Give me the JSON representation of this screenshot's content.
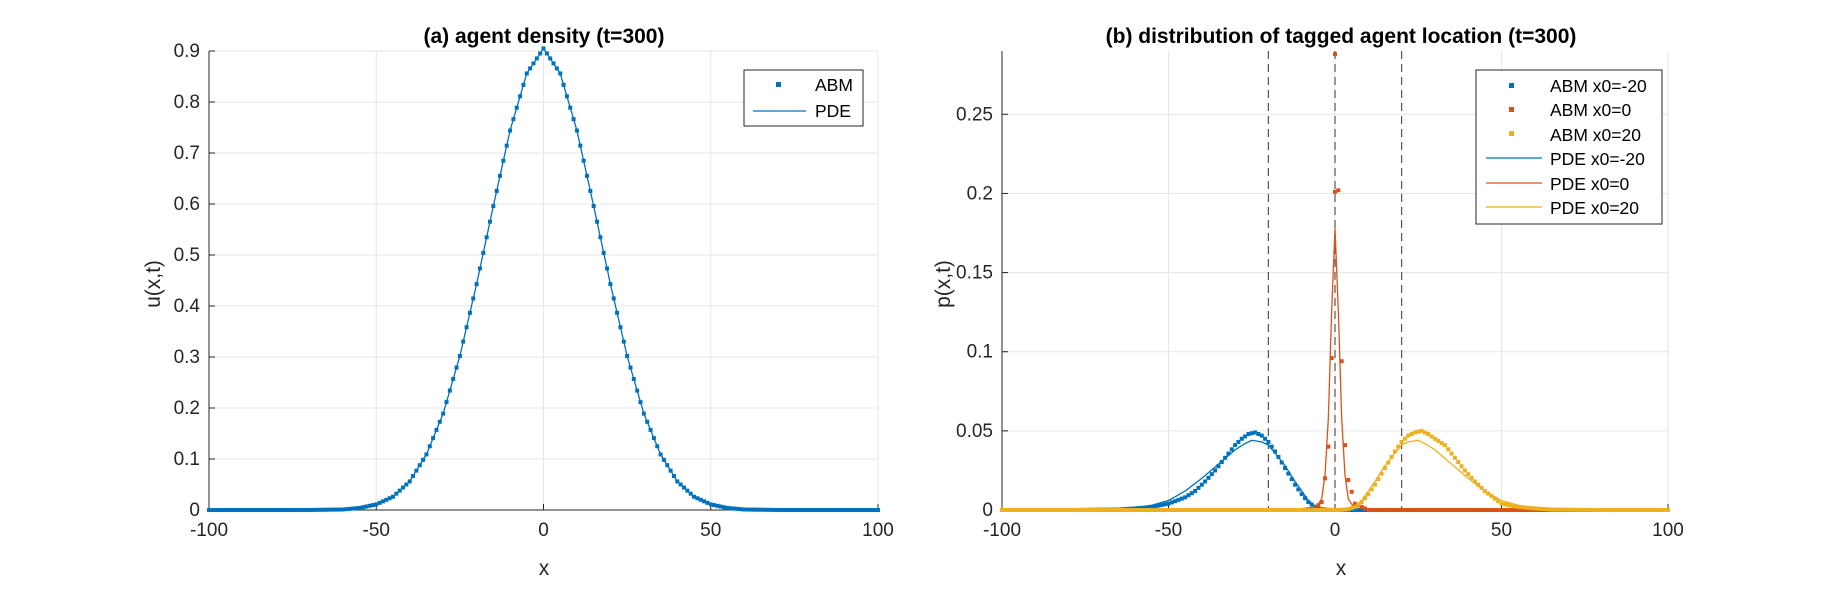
{
  "chart_data": [
    {
      "type": "line",
      "title": "(a) agent density (t=300)",
      "xlabel": "x",
      "ylabel": "u(x,t)",
      "xlim": [
        -100,
        100
      ],
      "ylim": [
        0,
        0.9
      ],
      "xticks": [
        -100,
        -50,
        0,
        50,
        100
      ],
      "yticks": [
        0,
        0.1,
        0.2,
        0.3,
        0.4,
        0.5,
        0.6,
        0.7,
        0.8,
        0.9
      ],
      "xtick_labels": [
        "-100",
        "-50",
        "0",
        "50",
        "100"
      ],
      "ytick_labels": [
        "0",
        "0.1",
        "0.2",
        "0.3",
        "0.4",
        "0.5",
        "0.6",
        "0.7",
        "0.8",
        "0.9"
      ],
      "grid": true,
      "legend": "top-right",
      "series": [
        {
          "name": "ABM",
          "style": "markers",
          "color": "#0072BD",
          "x": [
            -100,
            -90,
            -80,
            -70,
            -60,
            -55,
            -50,
            -45,
            -40,
            -35,
            -30,
            -25,
            -20,
            -15,
            -10,
            -5,
            0,
            5,
            10,
            15,
            20,
            25,
            30,
            35,
            40,
            45,
            50,
            55,
            60,
            70,
            80,
            90,
            100
          ],
          "y": [
            0,
            0,
            0,
            0.0001,
            0.001,
            0.004,
            0.011,
            0.026,
            0.056,
            0.109,
            0.189,
            0.302,
            0.443,
            0.596,
            0.744,
            0.856,
            0.905,
            0.856,
            0.744,
            0.596,
            0.443,
            0.302,
            0.189,
            0.109,
            0.056,
            0.026,
            0.011,
            0.004,
            0.001,
            0.0001,
            0,
            0,
            0
          ]
        },
        {
          "name": "PDE",
          "style": "line",
          "color": "#0072BD",
          "x": [
            -100,
            -90,
            -80,
            -70,
            -60,
            -55,
            -50,
            -45,
            -40,
            -35,
            -30,
            -25,
            -20,
            -15,
            -10,
            -5,
            0,
            5,
            10,
            15,
            20,
            25,
            30,
            35,
            40,
            45,
            50,
            55,
            60,
            70,
            80,
            90,
            100
          ],
          "y": [
            0,
            0,
            0,
            0.0001,
            0.001,
            0.004,
            0.011,
            0.026,
            0.056,
            0.109,
            0.189,
            0.302,
            0.443,
            0.596,
            0.744,
            0.856,
            0.905,
            0.856,
            0.744,
            0.596,
            0.443,
            0.302,
            0.189,
            0.109,
            0.056,
            0.026,
            0.011,
            0.004,
            0.001,
            0.0001,
            0,
            0,
            0
          ]
        }
      ]
    },
    {
      "type": "line",
      "title": "(b) distribution of tagged agent location (t=300)",
      "xlabel": "x",
      "ylabel": "p(x,t)",
      "xlim": [
        -100,
        100
      ],
      "ylim": [
        0,
        0.29
      ],
      "xticks": [
        -100,
        -50,
        0,
        50,
        100
      ],
      "yticks": [
        0,
        0.05,
        0.1,
        0.15,
        0.2,
        0.25
      ],
      "xtick_labels": [
        "-100",
        "-50",
        "0",
        "50",
        "100"
      ],
      "ytick_labels": [
        "0",
        "0.05",
        "0.1",
        "0.15",
        "0.2",
        "0.25"
      ],
      "grid": true,
      "legend": "top-right",
      "reference_lines_x": [
        -20,
        0,
        20
      ],
      "series": [
        {
          "name": "ABM x0=-20",
          "style": "markers",
          "color": "#0072BD",
          "x": [
            -100,
            -80,
            -65,
            -60,
            -55,
            -50,
            -45,
            -42,
            -39,
            -36,
            -33,
            -30,
            -28,
            -26,
            -24,
            -22,
            -20,
            -18,
            -16,
            -14,
            -12,
            -10,
            -8,
            -6,
            -4,
            -2,
            0,
            20,
            50,
            100
          ],
          "y": [
            0,
            0,
            0.0003,
            0.001,
            0.002,
            0.004,
            0.008,
            0.012,
            0.018,
            0.025,
            0.033,
            0.041,
            0.045,
            0.048,
            0.049,
            0.047,
            0.043,
            0.037,
            0.03,
            0.023,
            0.016,
            0.01,
            0.005,
            0.002,
            0.0005,
            0.0001,
            0,
            0,
            0,
            0
          ]
        },
        {
          "name": "ABM x0=0",
          "style": "markers",
          "color": "#D95319",
          "x": [
            -100,
            -50,
            -10,
            -6,
            -4,
            -3,
            -2,
            -1,
            0,
            1,
            2,
            3,
            4,
            6,
            10,
            50,
            100
          ],
          "y": [
            0,
            0,
            0,
            0.001,
            0.005,
            0.02,
            0.04,
            0.096,
            0.201,
            0.202,
            0.094,
            0.041,
            0.019,
            0.004,
            0,
            0,
            0
          ],
          "outlier": [
            0,
            0.288
          ]
        },
        {
          "name": "ABM x0=20",
          "style": "markers",
          "color": "#EDB120",
          "x": [
            -100,
            -50,
            0,
            2,
            4,
            6,
            8,
            10,
            12,
            14,
            16,
            18,
            20,
            22,
            24,
            26,
            28,
            30,
            33,
            36,
            39,
            42,
            45,
            50,
            55,
            60,
            65,
            80,
            100
          ],
          "y": [
            0,
            0,
            0,
            0.0001,
            0.0005,
            0.002,
            0.005,
            0.01,
            0.016,
            0.023,
            0.03,
            0.037,
            0.043,
            0.047,
            0.049,
            0.05,
            0.048,
            0.045,
            0.041,
            0.033,
            0.025,
            0.018,
            0.012,
            0.004,
            0.002,
            0.001,
            0.0003,
            0,
            0
          ]
        },
        {
          "name": "PDE x0=-20",
          "style": "line",
          "color": "#0072BD",
          "x": [
            -100,
            -80,
            -70,
            -60,
            -55,
            -50,
            -45,
            -40,
            -35,
            -30,
            -27,
            -25,
            -22,
            -20,
            -18,
            -15,
            -12,
            -10,
            -8,
            -6,
            -4,
            -2,
            0,
            20,
            100
          ],
          "y": [
            0,
            0,
            0.0002,
            0.001,
            0.003,
            0.006,
            0.012,
            0.02,
            0.029,
            0.038,
            0.042,
            0.044,
            0.043,
            0.041,
            0.036,
            0.028,
            0.018,
            0.012,
            0.006,
            0.0025,
            0.0008,
            0.0001,
            0,
            0,
            0
          ]
        },
        {
          "name": "PDE x0=0",
          "style": "line",
          "color": "#D95319",
          "x": [
            -100,
            -20,
            -8,
            -6,
            -4,
            -3,
            -2,
            -1,
            0,
            1,
            2,
            3,
            4,
            6,
            8,
            20,
            100
          ],
          "y": [
            0,
            0,
            0,
            0.0005,
            0.007,
            0.022,
            0.058,
            0.126,
            0.178,
            0.126,
            0.058,
            0.022,
            0.007,
            0.0005,
            0,
            0,
            0
          ]
        },
        {
          "name": "PDE x0=20",
          "style": "line",
          "color": "#EDB120",
          "x": [
            -100,
            -20,
            0,
            2,
            4,
            6,
            8,
            10,
            12,
            15,
            18,
            20,
            22,
            25,
            27,
            30,
            35,
            40,
            45,
            50,
            55,
            60,
            70,
            80,
            100
          ],
          "y": [
            0,
            0,
            0,
            0.0001,
            0.0008,
            0.0025,
            0.006,
            0.012,
            0.018,
            0.028,
            0.036,
            0.041,
            0.043,
            0.044,
            0.042,
            0.038,
            0.029,
            0.02,
            0.012,
            0.006,
            0.003,
            0.001,
            0.0002,
            0,
            0
          ]
        }
      ]
    }
  ]
}
